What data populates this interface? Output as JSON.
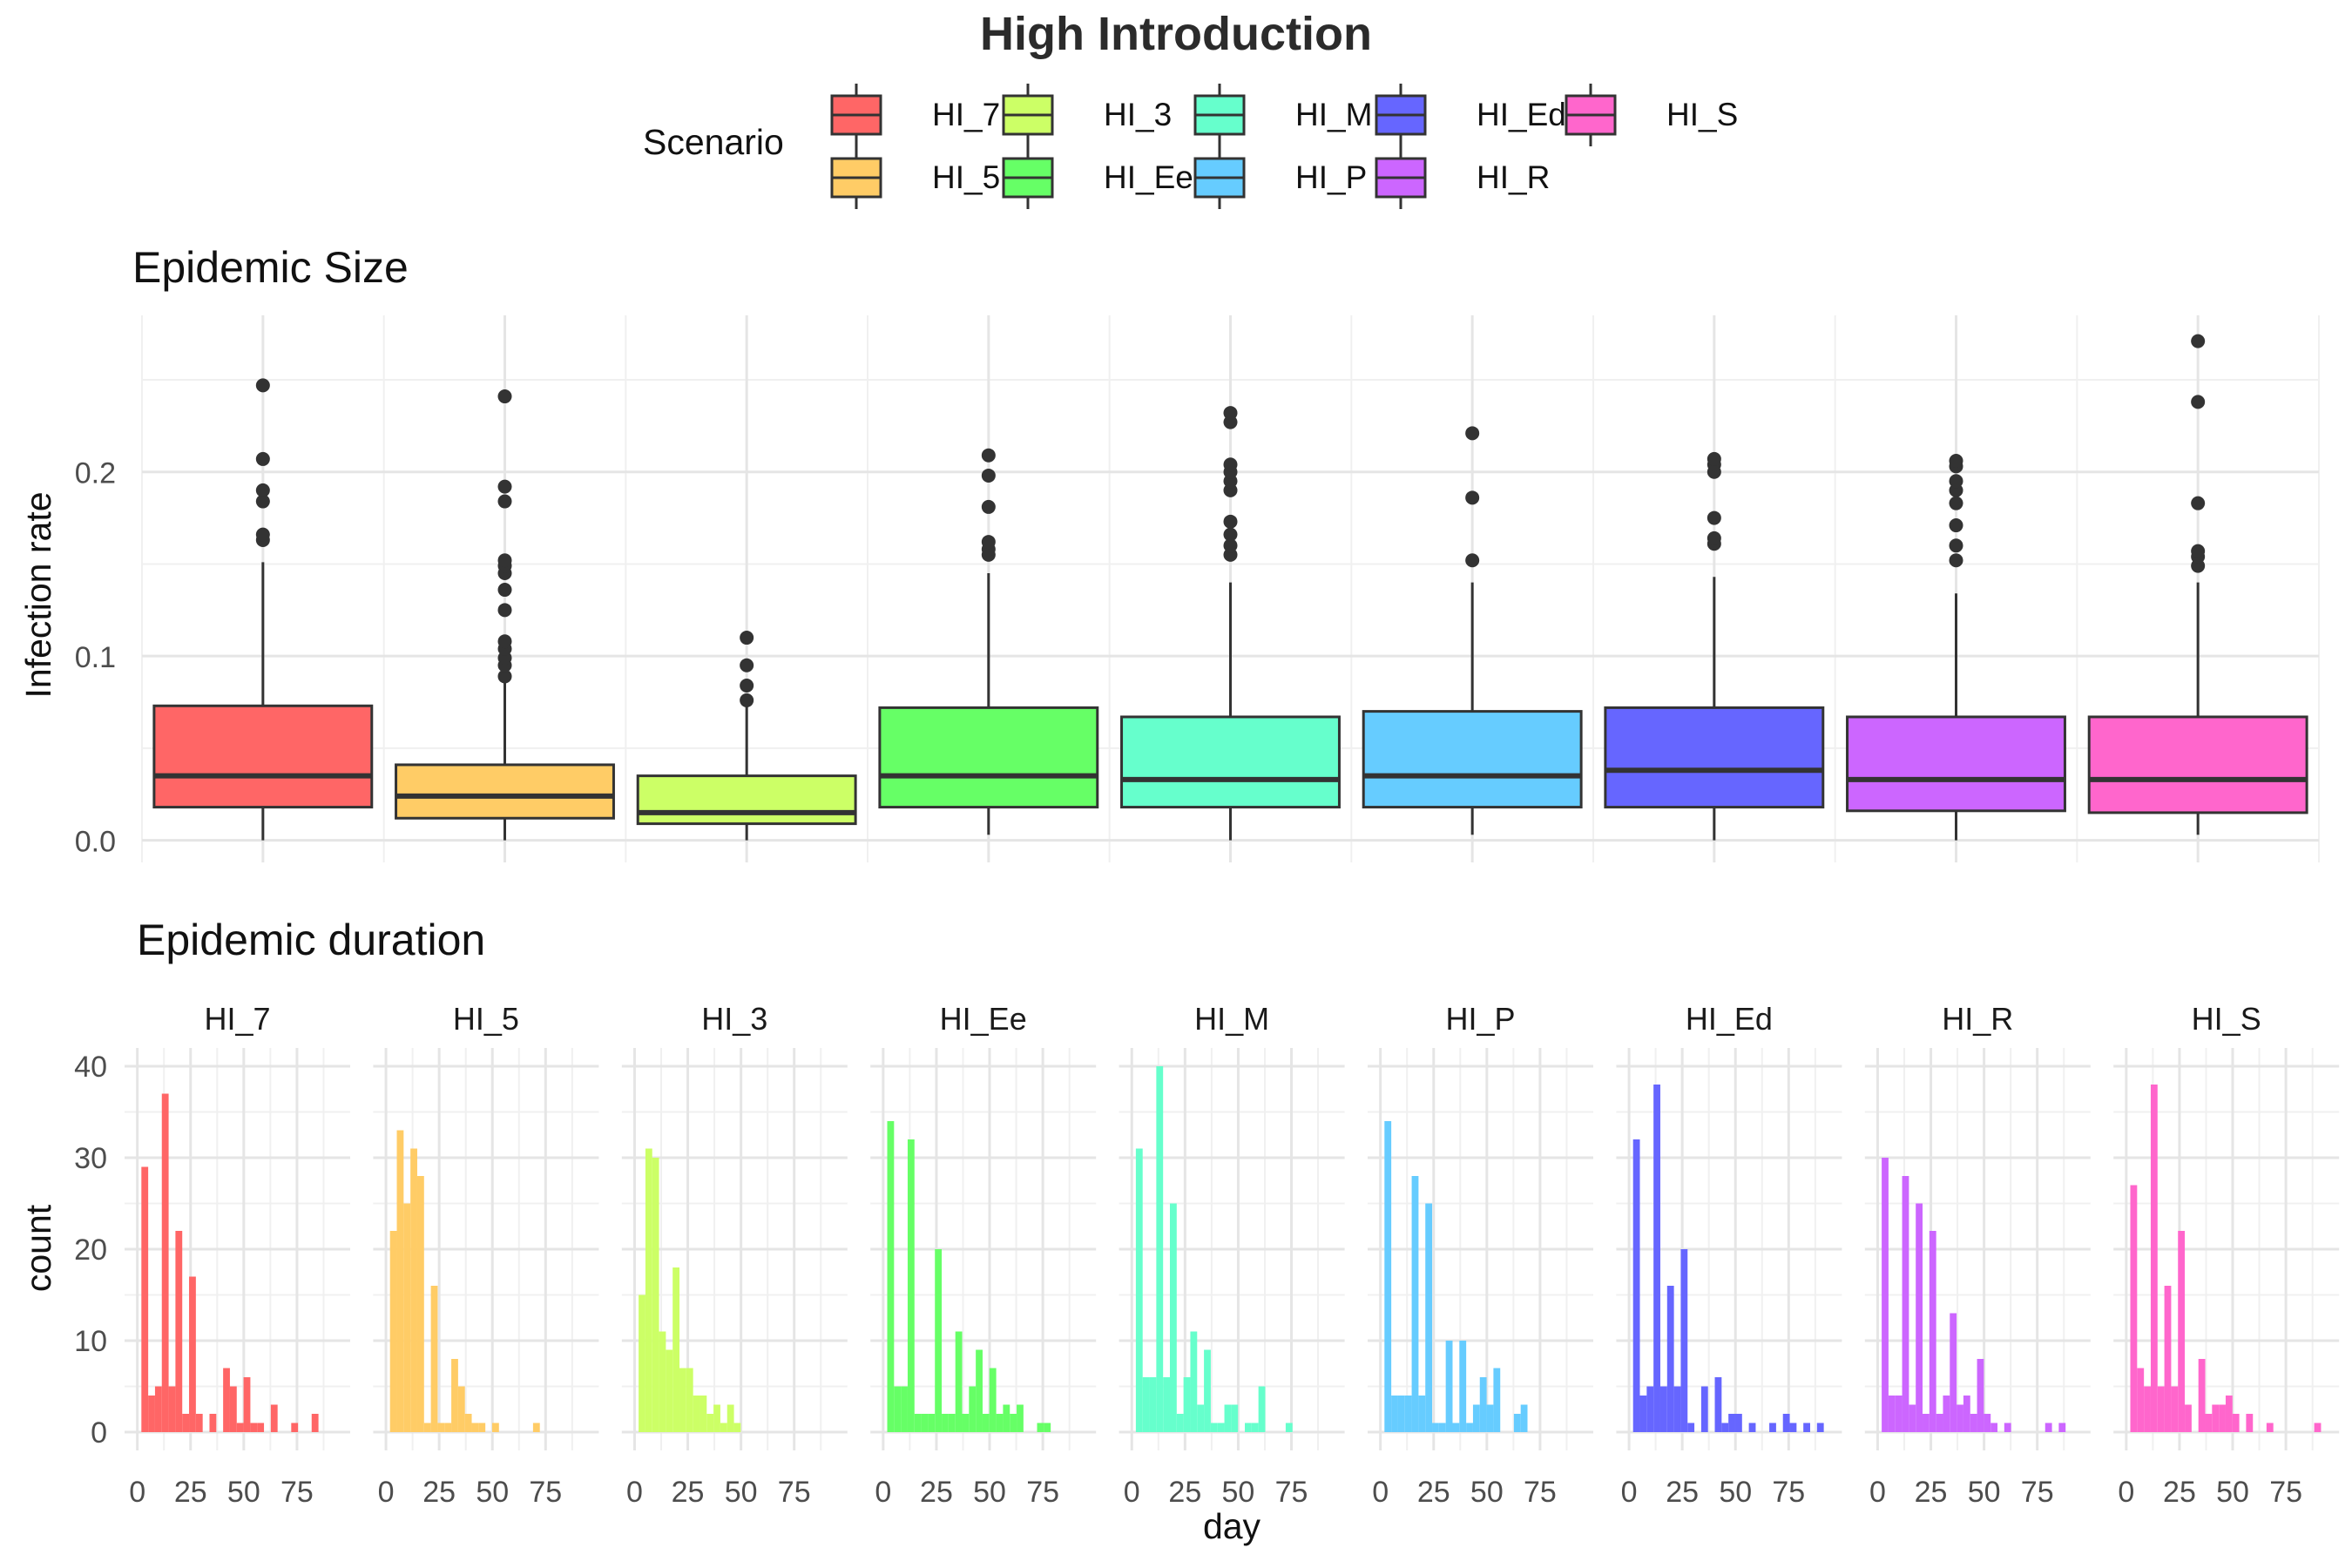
{
  "title": "High Introduction",
  "legend": {
    "title": "Scenario",
    "items": [
      {
        "label": "HI_7",
        "color": "#FF6666"
      },
      {
        "label": "HI_5",
        "color": "#FFCC66"
      },
      {
        "label": "HI_3",
        "color": "#CCFF66"
      },
      {
        "label": "HI_Ee",
        "color": "#66FF66"
      },
      {
        "label": "HI_M",
        "color": "#66FFCC"
      },
      {
        "label": "HI_P",
        "color": "#66CCFF"
      },
      {
        "label": "HI_Ed",
        "color": "#6666FF"
      },
      {
        "label": "HI_R",
        "color": "#CC66FF"
      },
      {
        "label": "HI_S",
        "color": "#FF66CC"
      }
    ]
  },
  "chart_data": [
    {
      "type": "box",
      "title": "Epidemic Size",
      "ylabel": "Infection rate",
      "xlabel": "",
      "ylim": [
        -0.012,
        0.285
      ],
      "y_ticks": [
        0.0,
        0.1,
        0.2
      ],
      "y_tick_labels": [
        "0.0",
        "0.1",
        "0.2"
      ],
      "grid": true,
      "series": [
        {
          "name": "HI_7",
          "q1": 0.018,
          "median": 0.035,
          "q3": 0.073,
          "whisker_low": 0.0,
          "whisker_high": 0.151,
          "outliers": [
            0.163,
            0.166,
            0.184,
            0.19,
            0.207,
            0.247
          ]
        },
        {
          "name": "HI_5",
          "q1": 0.012,
          "median": 0.024,
          "q3": 0.041,
          "whisker_low": 0.0,
          "whisker_high": 0.086,
          "outliers": [
            0.089,
            0.095,
            0.099,
            0.104,
            0.108,
            0.125,
            0.136,
            0.145,
            0.149,
            0.152,
            0.184,
            0.192,
            0.241
          ]
        },
        {
          "name": "HI_3",
          "q1": 0.009,
          "median": 0.015,
          "q3": 0.035,
          "whisker_low": 0.0,
          "whisker_high": 0.073,
          "outliers": [
            0.076,
            0.084,
            0.095,
            0.11
          ]
        },
        {
          "name": "HI_Ee",
          "q1": 0.018,
          "median": 0.035,
          "q3": 0.072,
          "whisker_low": 0.003,
          "whisker_high": 0.145,
          "outliers": [
            0.155,
            0.158,
            0.162,
            0.181,
            0.198,
            0.209
          ]
        },
        {
          "name": "HI_M",
          "q1": 0.018,
          "median": 0.033,
          "q3": 0.067,
          "whisker_low": 0.0,
          "whisker_high": 0.14,
          "outliers": [
            0.155,
            0.16,
            0.166,
            0.173,
            0.19,
            0.195,
            0.2,
            0.204,
            0.227,
            0.232
          ]
        },
        {
          "name": "HI_P",
          "q1": 0.018,
          "median": 0.035,
          "q3": 0.07,
          "whisker_low": 0.003,
          "whisker_high": 0.14,
          "outliers": [
            0.152,
            0.186,
            0.221
          ]
        },
        {
          "name": "HI_Ed",
          "q1": 0.018,
          "median": 0.038,
          "q3": 0.072,
          "whisker_low": 0.0,
          "whisker_high": 0.143,
          "outliers": [
            0.161,
            0.164,
            0.175,
            0.2,
            0.204,
            0.207
          ]
        },
        {
          "name": "HI_R",
          "q1": 0.016,
          "median": 0.033,
          "q3": 0.067,
          "whisker_low": 0.0,
          "whisker_high": 0.134,
          "outliers": [
            0.152,
            0.16,
            0.171,
            0.183,
            0.19,
            0.195,
            0.203,
            0.206
          ]
        },
        {
          "name": "HI_S",
          "q1": 0.015,
          "median": 0.033,
          "q3": 0.067,
          "whisker_low": 0.003,
          "whisker_high": 0.14,
          "outliers": [
            0.149,
            0.154,
            0.157,
            0.183,
            0.238,
            0.271
          ]
        }
      ]
    },
    {
      "type": "bar",
      "title": "Epidemic duration",
      "xlabel": "day",
      "ylabel": "count",
      "xlim": [
        -6,
        100
      ],
      "x_ticks": [
        0,
        25,
        50,
        75
      ],
      "ylim": [
        -2,
        42
      ],
      "y_ticks": [
        0,
        10,
        20,
        30,
        40
      ],
      "bin_width": 3.2,
      "grid": true,
      "panels": [
        {
          "name": "HI_7",
          "bins": [
            [
              3.5,
              29
            ],
            [
              6.7,
              4
            ],
            [
              9.9,
              5
            ],
            [
              13.1,
              37
            ],
            [
              16.3,
              5
            ],
            [
              19.5,
              22
            ],
            [
              22.7,
              2
            ],
            [
              25.9,
              17
            ],
            [
              29.1,
              2
            ],
            [
              35.5,
              2
            ],
            [
              41.9,
              7
            ],
            [
              45.1,
              5
            ],
            [
              48.3,
              1
            ],
            [
              51.5,
              6
            ],
            [
              54.7,
              1
            ],
            [
              57.9,
              1
            ],
            [
              64.3,
              3
            ],
            [
              73.9,
              1
            ],
            [
              83.5,
              2
            ]
          ]
        },
        {
          "name": "HI_5",
          "bins": [
            [
              3.5,
              22
            ],
            [
              6.7,
              33
            ],
            [
              9.9,
              25
            ],
            [
              13.1,
              31
            ],
            [
              16.3,
              28
            ],
            [
              19.5,
              1
            ],
            [
              22.7,
              16
            ],
            [
              25.9,
              1
            ],
            [
              29.1,
              1
            ],
            [
              32.3,
              8
            ],
            [
              35.5,
              5
            ],
            [
              38.7,
              2
            ],
            [
              41.9,
              1
            ],
            [
              45.1,
              1
            ],
            [
              51.5,
              1
            ],
            [
              70.7,
              1
            ]
          ]
        },
        {
          "name": "HI_3",
          "bins": [
            [
              3.5,
              15
            ],
            [
              6.7,
              31
            ],
            [
              9.9,
              30
            ],
            [
              13.1,
              11
            ],
            [
              16.3,
              9
            ],
            [
              19.5,
              18
            ],
            [
              22.7,
              7
            ],
            [
              25.9,
              7
            ],
            [
              29.1,
              4
            ],
            [
              32.3,
              4
            ],
            [
              35.5,
              2
            ],
            [
              38.7,
              3
            ],
            [
              41.9,
              1
            ],
            [
              45.1,
              3
            ],
            [
              48.3,
              1
            ]
          ]
        },
        {
          "name": "HI_Ee",
          "bins": [
            [
              3.5,
              34
            ],
            [
              6.7,
              5
            ],
            [
              9.9,
              5
            ],
            [
              13.1,
              32
            ],
            [
              16.3,
              2
            ],
            [
              19.5,
              2
            ],
            [
              22.7,
              2
            ],
            [
              25.9,
              20
            ],
            [
              29.1,
              2
            ],
            [
              32.3,
              2
            ],
            [
              35.5,
              11
            ],
            [
              38.7,
              2
            ],
            [
              41.9,
              5
            ],
            [
              45.1,
              9
            ],
            [
              48.3,
              2
            ],
            [
              51.5,
              7
            ],
            [
              54.7,
              2
            ],
            [
              57.9,
              3
            ],
            [
              61.1,
              2
            ],
            [
              64.3,
              3
            ],
            [
              73.9,
              1
            ],
            [
              77.1,
              1
            ]
          ]
        },
        {
          "name": "HI_M",
          "bins": [
            [
              3.5,
              31
            ],
            [
              6.7,
              6
            ],
            [
              9.9,
              6
            ],
            [
              13.1,
              40
            ],
            [
              16.3,
              6
            ],
            [
              19.5,
              25
            ],
            [
              22.7,
              2
            ],
            [
              25.9,
              6
            ],
            [
              29.1,
              11
            ],
            [
              32.3,
              3
            ],
            [
              35.5,
              9
            ],
            [
              38.7,
              1
            ],
            [
              41.9,
              1
            ],
            [
              45.1,
              3
            ],
            [
              48.3,
              3
            ],
            [
              54.7,
              1
            ],
            [
              57.9,
              1
            ],
            [
              61.1,
              5
            ],
            [
              73.9,
              1
            ]
          ]
        },
        {
          "name": "HI_P",
          "bins": [
            [
              3.5,
              34
            ],
            [
              6.7,
              4
            ],
            [
              9.9,
              4
            ],
            [
              13.1,
              4
            ],
            [
              16.3,
              28
            ],
            [
              19.5,
              4
            ],
            [
              22.7,
              25
            ],
            [
              25.9,
              1
            ],
            [
              29.1,
              1
            ],
            [
              32.3,
              10
            ],
            [
              35.5,
              1
            ],
            [
              38.7,
              10
            ],
            [
              41.9,
              1
            ],
            [
              45.1,
              3
            ],
            [
              48.3,
              6
            ],
            [
              51.5,
              3
            ],
            [
              54.7,
              7
            ],
            [
              64.3,
              2
            ],
            [
              67.5,
              3
            ]
          ]
        },
        {
          "name": "HI_Ed",
          "bins": [
            [
              3.5,
              32
            ],
            [
              6.7,
              4
            ],
            [
              9.9,
              5
            ],
            [
              13.1,
              38
            ],
            [
              16.3,
              5
            ],
            [
              19.5,
              16
            ],
            [
              22.7,
              5
            ],
            [
              25.9,
              20
            ],
            [
              29.1,
              1
            ],
            [
              35.5,
              5
            ],
            [
              41.9,
              6
            ],
            [
              45.1,
              1
            ],
            [
              48.3,
              2
            ],
            [
              51.5,
              2
            ],
            [
              57.9,
              1
            ],
            [
              67.5,
              1
            ],
            [
              73.9,
              2
            ],
            [
              77.1,
              1
            ],
            [
              83.5,
              1
            ],
            [
              89.9,
              1
            ]
          ]
        },
        {
          "name": "HI_R",
          "bins": [
            [
              3.5,
              30
            ],
            [
              6.7,
              4
            ],
            [
              9.9,
              4
            ],
            [
              13.1,
              28
            ],
            [
              16.3,
              3
            ],
            [
              19.5,
              25
            ],
            [
              22.7,
              2
            ],
            [
              25.9,
              22
            ],
            [
              29.1,
              2
            ],
            [
              32.3,
              4
            ],
            [
              35.5,
              13
            ],
            [
              38.7,
              3
            ],
            [
              41.9,
              4
            ],
            [
              45.1,
              2
            ],
            [
              48.3,
              8
            ],
            [
              51.5,
              2
            ],
            [
              54.7,
              1
            ],
            [
              61.1,
              1
            ],
            [
              80.3,
              1
            ],
            [
              86.7,
              1
            ]
          ]
        },
        {
          "name": "HI_S",
          "bins": [
            [
              3.5,
              27
            ],
            [
              6.7,
              7
            ],
            [
              9.9,
              5
            ],
            [
              13.1,
              38
            ],
            [
              16.3,
              5
            ],
            [
              19.5,
              16
            ],
            [
              22.7,
              5
            ],
            [
              25.9,
              22
            ],
            [
              29.1,
              3
            ],
            [
              35.5,
              8
            ],
            [
              38.7,
              2
            ],
            [
              41.9,
              3
            ],
            [
              45.1,
              3
            ],
            [
              48.3,
              4
            ],
            [
              51.5,
              2
            ],
            [
              57.9,
              2
            ],
            [
              67.5,
              1
            ],
            [
              89.9,
              1
            ]
          ]
        }
      ]
    }
  ]
}
